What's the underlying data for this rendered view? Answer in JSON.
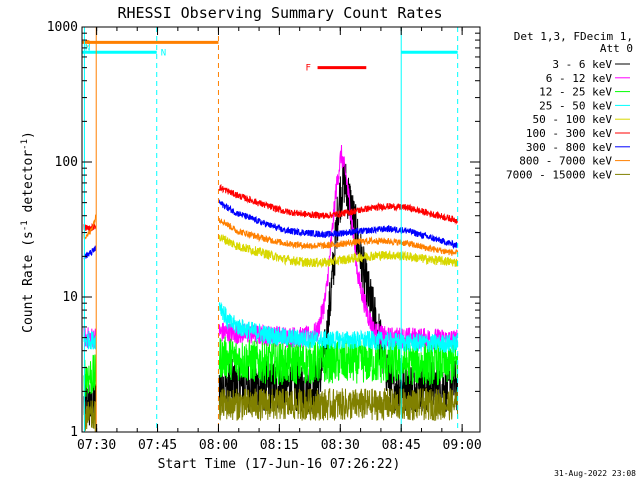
{
  "chart_data": {
    "type": "line",
    "title": "RHESSI Observing Summary Count Rates",
    "xlabel": "Start Time (17-Jun-16 07:26:22)",
    "ylabel_parts": [
      "Count Rate (s",
      "-1",
      " detector",
      "-1",
      ")"
    ],
    "y_scale": "log",
    "ylim": [
      1,
      1000
    ],
    "xlim_minutes": [
      0,
      98
    ],
    "x_ticks": [
      {
        "label": "07:30",
        "min": 3.6
      },
      {
        "label": "07:45",
        "min": 18.6
      },
      {
        "label": "08:00",
        "min": 33.6
      },
      {
        "label": "08:15",
        "min": 48.6
      },
      {
        "label": "08:30",
        "min": 63.6
      },
      {
        "label": "08:45",
        "min": 78.6
      },
      {
        "label": "09:00",
        "min": 93.6
      }
    ],
    "y_ticks": [
      {
        "label": "1",
        "value": 1
      },
      {
        "label": "10",
        "value": 10
      },
      {
        "label": "100",
        "value": 100
      },
      {
        "label": "1000",
        "value": 1000
      }
    ],
    "legend_header": [
      "Det 1,3, FDecim 1,",
      "Att 0"
    ],
    "legend_position": "right",
    "grid": false,
    "series": [
      {
        "name": "3 - 6 keV",
        "color": "#000000",
        "segments": [
          {
            "x": [
              0.5,
              3.5
            ],
            "y": [
              1.6,
              1.6
            ]
          },
          {
            "x": [
              33.8,
              50,
              58,
              60,
              62,
              63.2,
              64.5,
              66,
              68,
              70,
              72,
              74,
              76,
              80,
              85,
              92.5
            ],
            "y": [
              2.2,
              2.2,
              2.2,
              4,
              18,
              50,
              75,
              50,
              25,
              12,
              7,
              4,
              2.2,
              2.2,
              2.2,
              2.2
            ]
          }
        ]
      },
      {
        "name": "6 - 12 keV",
        "color": "#ff00ff",
        "segments": [
          {
            "x": [
              0.5,
              3.5
            ],
            "y": [
              5,
              5
            ]
          },
          {
            "x": [
              33.8,
              45,
              55,
              58,
              60,
              61.5,
              62.5,
              63.8,
              65,
              66.5,
              68,
              70,
              72,
              75,
              80,
              92.5
            ],
            "y": [
              5.5,
              5.2,
              5,
              5.5,
              10,
              28,
              60,
              115,
              80,
              35,
              14,
              8,
              5.5,
              5,
              5,
              4.8
            ]
          }
        ]
      },
      {
        "name": "12 - 25 keV",
        "color": "#00ff00",
        "segments": [
          {
            "x": [
              0.5,
              3.5
            ],
            "y": [
              2.6,
              2.6
            ]
          },
          {
            "x": [
              33.8,
              40,
              50,
              60,
              70,
              80,
              92.5
            ],
            "y": [
              3.6,
              3.4,
              3.2,
              3.3,
              3.3,
              3.2,
              3.2
            ]
          }
        ]
      },
      {
        "name": "25 - 50 keV",
        "color": "#00ffff",
        "segments": [
          {
            "x": [
              0.5,
              3.5
            ],
            "y": [
              4.8,
              4.8
            ]
          },
          {
            "x": [
              33.8,
              36,
              40,
              45,
              50,
              60,
              70,
              80,
              92.5
            ],
            "y": [
              9,
              6.5,
              5.8,
              5.3,
              5,
              4.8,
              4.8,
              4.6,
              4.5
            ]
          }
        ]
      },
      {
        "name": "50 - 100 keV",
        "color": "#d8d800",
        "segments": [
          {
            "x": [
              33.8,
              38,
              45,
              50,
              55,
              60,
              65,
              70,
              75,
              80,
              85,
              92.5
            ],
            "y": [
              28,
              24,
              21,
              19,
              18,
              18,
              19,
              20,
              20.5,
              20,
              19,
              18
            ]
          }
        ]
      },
      {
        "name": "100 - 300 keV",
        "color": "#ff0000",
        "segments": [
          {
            "x": [
              0.5,
              2,
              3.5
            ],
            "y": [
              33,
              32,
              34
            ]
          },
          {
            "x": [
              33.8,
              38,
              45,
              50,
              55,
              60,
              65,
              70,
              75,
              80,
              85,
              92.5
            ],
            "y": [
              65,
              57,
              48,
              43,
              41,
              40,
              42,
              45,
              47,
              46,
              42,
              37
            ]
          }
        ]
      },
      {
        "name": "300 - 800 keV",
        "color": "#0000ff",
        "segments": [
          {
            "x": [
              0.5,
              2,
              3.5
            ],
            "y": [
              20,
              21,
              23
            ]
          },
          {
            "x": [
              33.8,
              38,
              45,
              50,
              55,
              60,
              65,
              70,
              75,
              80,
              85,
              92.5
            ],
            "y": [
              50,
              42,
              35,
              31,
              30,
              29,
              30,
              31,
              32,
              31,
              28,
              24
            ]
          }
        ]
      },
      {
        "name": "800 - 7000 keV",
        "color": "#ff8000",
        "segments": [
          {
            "x": [
              0.5,
              2,
              3.5
            ],
            "y": [
              28,
              30,
              40
            ]
          },
          {
            "x": [
              33.8,
              38,
              45,
              50,
              55,
              60,
              65,
              70,
              75,
              80,
              85,
              92.5
            ],
            "y": [
              38,
              31,
              27,
              25,
              24,
              24,
              25,
              26,
              26,
              25,
              23,
              21
            ]
          }
        ]
      },
      {
        "name": "7000 - 15000 keV",
        "color": "#808000",
        "segments": [
          {
            "x": [
              0.5,
              3.5
            ],
            "y": [
              1.3,
              1.3
            ]
          },
          {
            "x": [
              33.8,
              50,
              60,
              70,
              80,
              92.5
            ],
            "y": [
              1.6,
              1.6,
              1.6,
              1.6,
              1.6,
              1.6
            ]
          }
        ]
      }
    ],
    "state_bars": [
      {
        "label": "S",
        "color": "#ff8000",
        "x0": 0,
        "x1": 33.6,
        "level": 770
      },
      {
        "label": "N",
        "color": "#00ffff",
        "x0": 0,
        "x1": 3.5,
        "level": 650
      },
      {
        "label": "N",
        "color": "#00ffff",
        "x0": 3.5,
        "x1": 18.4,
        "level": 650
      },
      {
        "label": "",
        "color": "#00ffff",
        "x0": 78.6,
        "x1": 92.5,
        "level": 650
      },
      {
        "label": "F",
        "color": "#ff0000",
        "x0": 58,
        "x1": 70,
        "level": 500
      }
    ],
    "vlines": [
      {
        "color": "#ff8000",
        "style": "solid",
        "x": 3.5
      },
      {
        "color": "#ff8000",
        "style": "dashed",
        "x": 33.6
      },
      {
        "color": "#00ffff",
        "style": "solid",
        "x": 0.6
      },
      {
        "color": "#00ffff",
        "style": "dashed",
        "x": 18.4
      },
      {
        "color": "#00ffff",
        "style": "solid",
        "x": 78.6
      },
      {
        "color": "#00ffff",
        "style": "dashed",
        "x": 92.5
      }
    ]
  },
  "footer": {
    "timestamp": "31-Aug-2022 23:08"
  }
}
